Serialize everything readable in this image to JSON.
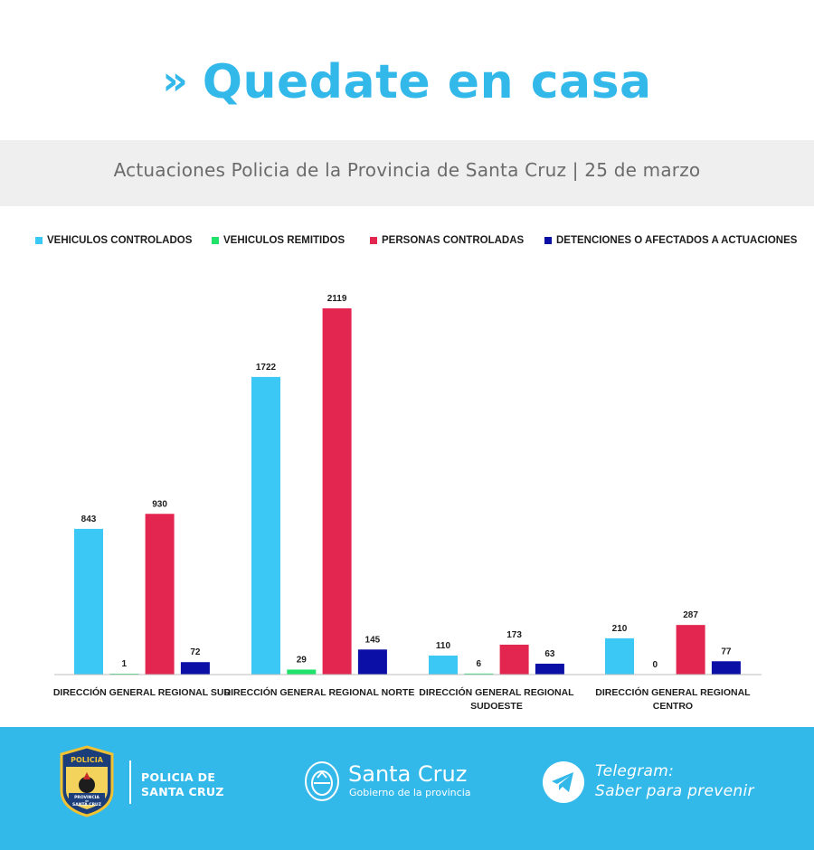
{
  "header": {
    "title": "Quedate en casa",
    "chevron": "»",
    "subtitle": "Actuaciones Policia de la Provincia de Santa Cruz | 25 de marzo"
  },
  "colors": {
    "accent": "#33b8ea",
    "vehiculos_controlados": "#3cc8f4",
    "vehiculos_remitidos": "#1fe36a",
    "personas_controladas": "#e3264f",
    "detenciones": "#0b0fa6"
  },
  "chart_data": {
    "type": "bar",
    "title": "Actuaciones Policia de la Provincia de Santa Cruz | 25 de marzo",
    "categories": [
      [
        "DIRECCIÓN GENERAL REGIONAL SUR"
      ],
      [
        "DIRECCIÓN GENERAL REGIONAL NORTE"
      ],
      [
        "DIRECCIÓN GENERAL REGIONAL",
        "SUDOESTE"
      ],
      [
        "DIRECCIÓN GENERAL REGIONAL",
        "CENTRO"
      ]
    ],
    "series": [
      {
        "name": "VEHICULOS CONTROLADOS",
        "color": "#3cc8f4",
        "values": [
          843,
          1722,
          110,
          210
        ]
      },
      {
        "name": "VEHICULOS REMITIDOS",
        "color": "#1fe36a",
        "values": [
          1,
          29,
          6,
          0
        ]
      },
      {
        "name": "PERSONAS CONTROLADAS",
        "color": "#e3264f",
        "values": [
          930,
          2119,
          173,
          287
        ]
      },
      {
        "name": "DETENCIONES O AFECTADOS A ACTUACIONES",
        "color": "#0b0fa6",
        "values": [
          72,
          145,
          63,
          77
        ]
      }
    ],
    "legend_position": "top",
    "grid": false,
    "ylim": [
      0,
      2119
    ]
  },
  "footer": {
    "policia_line1": "POLICIA DE",
    "policia_line2": "SANTA CRUZ",
    "badge_top": "POLICIA",
    "badge_bottom1": "PROVINCIA",
    "badge_bottom2": "de",
    "badge_bottom3": "SANTA CRUZ",
    "santacruz": "Santa Cruz",
    "santacruz_sub": "Gobierno de la provincia",
    "telegram_line1": "Telegram:",
    "telegram_line2": "Saber para prevenir",
    "icons": [
      "police-badge-icon",
      "province-seal-icon",
      "telegram-icon"
    ]
  }
}
